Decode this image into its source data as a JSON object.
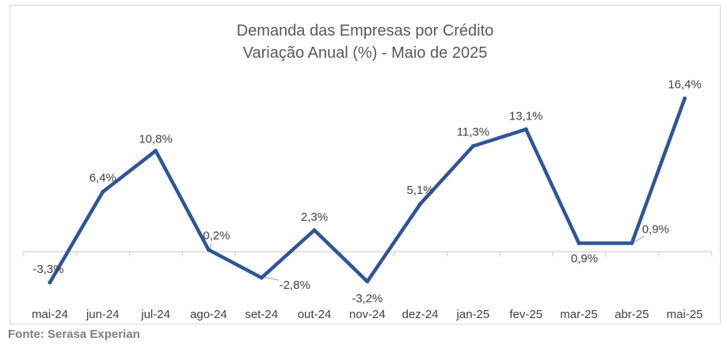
{
  "chart_data": {
    "type": "line",
    "title": "Demanda das Empresas por Crédito",
    "subtitle": "Variação Anual (%) - Maio de 2025",
    "categories": [
      "mai-24",
      "jun-24",
      "jul-24",
      "ago-24",
      "set-24",
      "out-24",
      "nov-24",
      "dez-24",
      "jan-25",
      "fev-25",
      "mar-25",
      "abr-25",
      "mai-25"
    ],
    "series": [
      {
        "values": [
          -3.3,
          6.4,
          10.8,
          0.2,
          -2.8,
          2.3,
          -3.2,
          5.1,
          11.3,
          13.1,
          0.9,
          0.9,
          16.4
        ],
        "labels": [
          "-3,3%",
          "6,4%",
          "10,8%",
          "0,2%",
          "-2,8%",
          "2,3%",
          "-3,2%",
          "5,1%",
          "11,3%",
          "13,1%",
          "0,9%",
          "0,9%",
          "16,4%"
        ]
      }
    ],
    "line_color": "#2e5597",
    "xlabel": "",
    "ylabel": "",
    "grid": false,
    "legend": "none"
  },
  "source": "Fonte: Serasa Experian"
}
